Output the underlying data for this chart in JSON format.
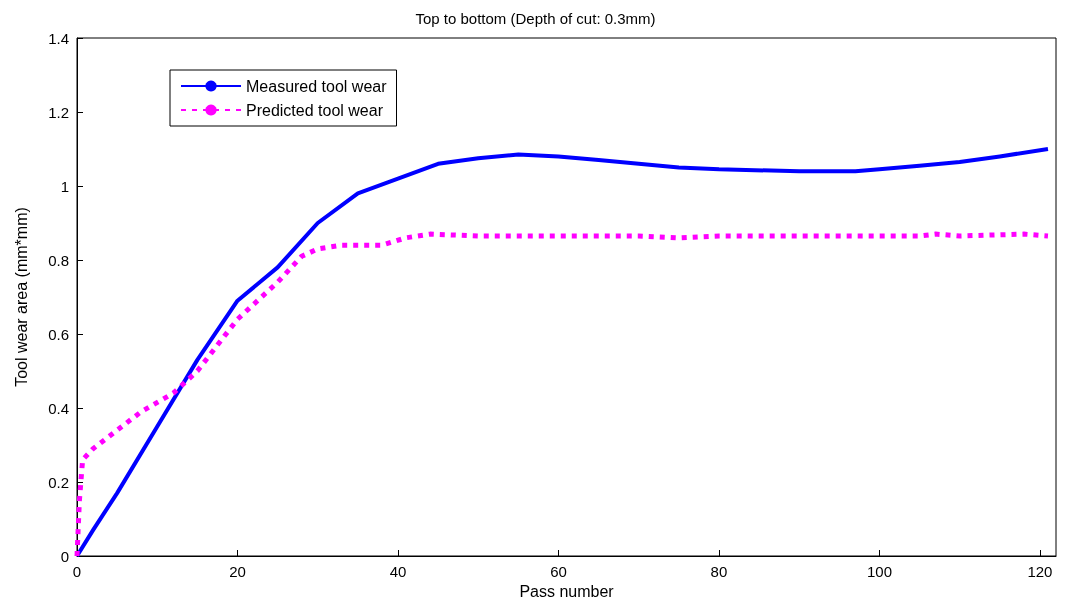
{
  "chart_data": {
    "type": "line",
    "title": "Top to bottom (Depth of cut: 0.3mm)",
    "xlabel": "Pass number",
    "ylabel": "Tool wear area (mm*mm)",
    "xlim": [
      0,
      122
    ],
    "xticks": [
      0,
      20,
      40,
      60,
      80,
      100,
      120
    ],
    "ylim": [
      0,
      1.4
    ],
    "yticks": [
      0,
      0.2,
      0.4,
      0.6,
      0.8,
      1,
      1.2,
      1.4
    ],
    "grid": false,
    "legend": "top left",
    "marker": "none",
    "series": [
      {
        "name": "Measured tool wear",
        "color": "#0000ff",
        "line_style": "solid",
        "x": [
          0,
          2,
          5,
          10,
          15,
          20,
          25,
          30,
          35,
          40,
          45,
          50,
          55,
          60,
          65,
          70,
          75,
          80,
          90,
          97,
          100,
          105,
          110,
          115,
          121
        ],
        "values": [
          0,
          0.07,
          0.17,
          0.35,
          0.53,
          0.69,
          0.78,
          0.9,
          0.98,
          1.02,
          1.06,
          1.075,
          1.085,
          1.08,
          1.07,
          1.06,
          1.05,
          1.045,
          1.04,
          1.04,
          1.045,
          1.055,
          1.065,
          1.08,
          1.1
        ]
      },
      {
        "name": "Predicted tool wear",
        "color": "#ff00ff",
        "line_style": "dotted",
        "x": [
          0,
          0.3,
          0.7,
          2,
          5,
          8,
          12,
          15,
          20,
          25,
          28,
          30,
          33,
          38,
          41,
          44,
          50,
          70,
          75,
          80,
          105,
          107,
          110,
          118,
          121
        ],
        "values": [
          0,
          0.15,
          0.26,
          0.29,
          0.34,
          0.39,
          0.44,
          0.5,
          0.64,
          0.74,
          0.81,
          0.83,
          0.84,
          0.84,
          0.86,
          0.87,
          0.865,
          0.865,
          0.86,
          0.865,
          0.865,
          0.87,
          0.865,
          0.87,
          0.865
        ]
      }
    ]
  }
}
